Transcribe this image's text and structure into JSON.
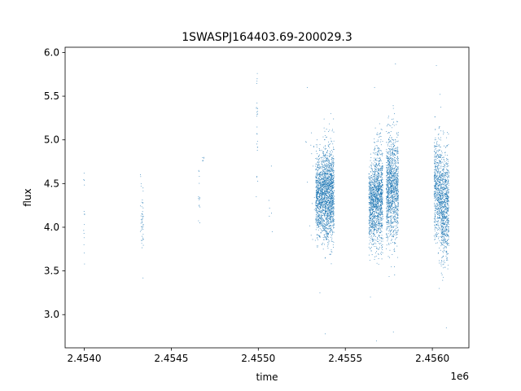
{
  "chart_data": {
    "type": "scatter",
    "title": "1SWASPJ164403.69-200029.3",
    "xlabel": "time",
    "ylabel": "flux",
    "offset_text": "1e6",
    "xlim": [
      2453890,
      2456210
    ],
    "ylim": [
      2.62,
      6.06
    ],
    "x_ticks": [
      2454000,
      2454500,
      2455000,
      2455500,
      2456000
    ],
    "x_tick_labels": [
      "2.4540",
      "2.4545",
      "2.4550",
      "2.4555",
      "2.4560"
    ],
    "y_ticks": [
      3.0,
      3.5,
      4.0,
      4.5,
      5.0,
      5.5,
      6.0
    ],
    "y_tick_labels": [
      "3.0",
      "3.5",
      "4.0",
      "4.5",
      "5.0",
      "5.5",
      "6.0"
    ],
    "grid": false,
    "marker_color": "#1f77b4",
    "clusters": [
      {
        "x_range": [
          2453996,
          2454002
        ],
        "n": 14,
        "mean": 4.05,
        "std": 0.3,
        "y_min": 3.58,
        "y_max": 4.62
      },
      {
        "x_range": [
          2454322,
          2454328
        ],
        "n": 10,
        "mean": 4.25,
        "std": 0.22,
        "y_min": 3.85,
        "y_max": 4.6
      },
      {
        "x_range": [
          2454328,
          2454340
        ],
        "n": 40,
        "mean": 4.05,
        "std": 0.18,
        "y_min": 3.42,
        "y_max": 4.45
      },
      {
        "x_range": [
          2454655,
          2454665
        ],
        "n": 14,
        "mean": 4.32,
        "std": 0.15,
        "y_min": 4.05,
        "y_max": 4.65
      },
      {
        "x_range": [
          2454678,
          2454690
        ],
        "n": 6,
        "mean": 4.78,
        "std": 0.02,
        "y_min": 4.76,
        "y_max": 4.8
      },
      {
        "x_range": [
          2454988,
          2454998
        ],
        "n": 25,
        "mean": 5.0,
        "std": 0.3,
        "y_min": 4.35,
        "y_max": 5.76
      },
      {
        "x_range": [
          2455060,
          2455080
        ],
        "n": 6,
        "mean": 4.4,
        "std": 0.25,
        "y_min": 3.95,
        "y_max": 4.7
      },
      {
        "x_range": [
          2455270,
          2455330
        ],
        "n": 18,
        "mean": 4.5,
        "std": 0.45,
        "y_min": 3.85,
        "y_max": 5.6
      },
      {
        "x_range": [
          2455330,
          2455370
        ],
        "n": 700,
        "mean": 4.35,
        "std": 0.22,
        "y_min": 3.25,
        "y_max": 5.0
      },
      {
        "x_range": [
          2455370,
          2455435
        ],
        "n": 1400,
        "mean": 4.38,
        "std": 0.26,
        "y_min": 2.78,
        "y_max": 5.3
      },
      {
        "x_range": [
          2455635,
          2455665
        ],
        "n": 500,
        "mean": 4.25,
        "std": 0.22,
        "y_min": 3.2,
        "y_max": 4.85
      },
      {
        "x_range": [
          2455665,
          2455715
        ],
        "n": 1000,
        "mean": 4.35,
        "std": 0.28,
        "y_min": 2.7,
        "y_max": 5.6
      },
      {
        "x_range": [
          2455735,
          2455805
        ],
        "n": 1300,
        "mean": 4.45,
        "std": 0.3,
        "y_min": 2.8,
        "y_max": 5.87
      },
      {
        "x_range": [
          2456010,
          2456050
        ],
        "n": 600,
        "mean": 4.45,
        "std": 0.28,
        "y_min": 3.3,
        "y_max": 5.85
      },
      {
        "x_range": [
          2456050,
          2456095
        ],
        "n": 800,
        "mean": 4.25,
        "std": 0.3,
        "y_min": 2.85,
        "y_max": 5.1
      }
    ]
  }
}
